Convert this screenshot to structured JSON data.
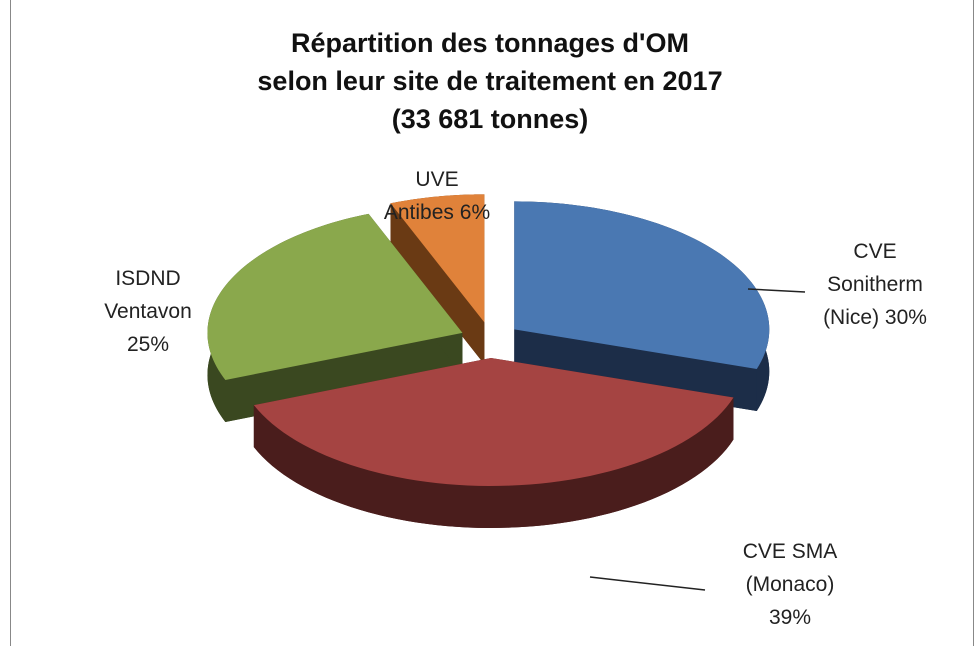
{
  "chart_data": {
    "type": "pie",
    "title": [
      "Répartition des tonnages d'OM",
      "selon leur site de traitement  en 2017",
      "(33 681 tonnes)"
    ],
    "categories": [
      "CVE Sonitherm (Nice)",
      "CVE SMA (Monaco)",
      "ISDND Ventavon",
      "UVE Antibes"
    ],
    "values": [
      30,
      39,
      25,
      6
    ],
    "value_labels": [
      "30%",
      "39%",
      "25%",
      "6%"
    ],
    "colors": [
      "#4a78b2",
      "#a54442",
      "#8aa84c",
      "#e0823a"
    ],
    "side_colors": [
      "#1c2d48",
      "#4a1d1c",
      "#3a4820",
      "#6a3a14"
    ]
  }
}
